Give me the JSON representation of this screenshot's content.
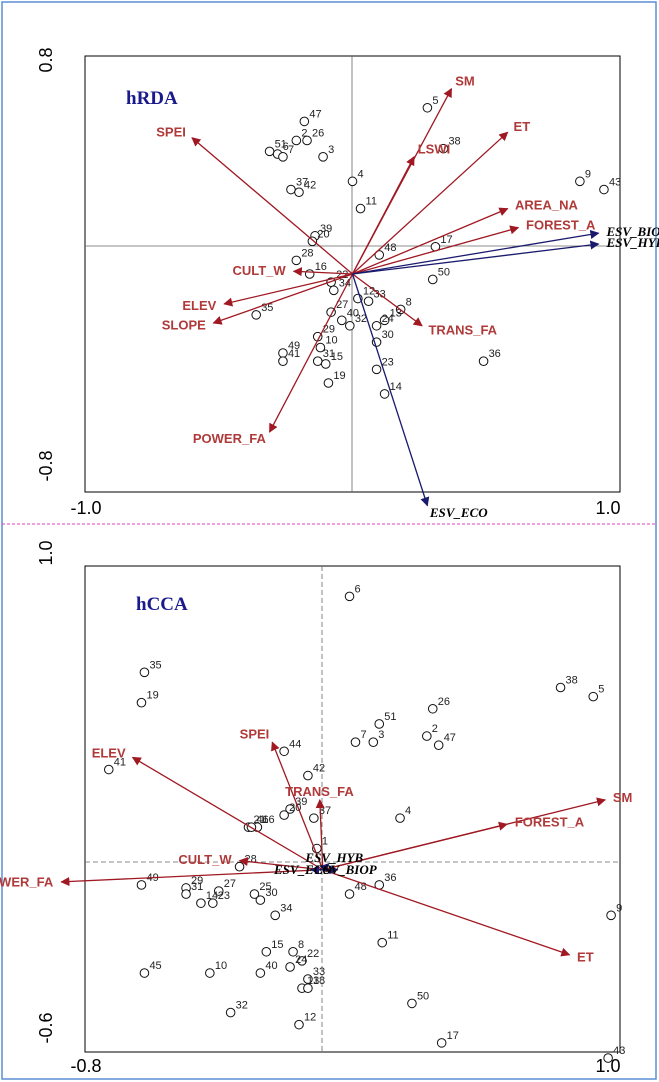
{
  "colors": {
    "env_arrow": "#a01822",
    "env_label": "#b03a3a",
    "esv_arrow": "#1a1a6e",
    "title": "#1a1a8c",
    "frame_border": "#5b8fd6",
    "divider": "#e040c0"
  },
  "chart_data": [
    {
      "type": "scatter",
      "title": "hRDA",
      "xlim": [
        -1.0,
        1.0
      ],
      "ylim": [
        -0.8,
        0.8
      ],
      "x_ticks": [
        "-1.0",
        "1.0"
      ],
      "y_ticks": [
        "0.8",
        "-0.8"
      ],
      "axis_lines": "dashed zero lines",
      "env_arrows": [
        {
          "label": "SM",
          "x": 0.37,
          "y": 0.68
        },
        {
          "label": "ET",
          "x": 0.58,
          "y": 0.52
        },
        {
          "label": "LSWI",
          "x": 0.23,
          "y": 0.43
        },
        {
          "label": "AREA_NA",
          "x": 0.58,
          "y": 0.24
        },
        {
          "label": "FOREST_A",
          "x": 0.62,
          "y": 0.17
        },
        {
          "label": "SPEI",
          "x": -0.6,
          "y": 0.5
        },
        {
          "label": "CULT_W",
          "x": -0.22,
          "y": 0.01
        },
        {
          "label": "ELEV",
          "x": -0.48,
          "y": -0.11
        },
        {
          "label": "SLOPE",
          "x": -0.52,
          "y": -0.18
        },
        {
          "label": "TRANS_FA",
          "x": 0.26,
          "y": -0.19
        },
        {
          "label": "POWER_FA",
          "x": -0.31,
          "y": -0.58
        }
      ],
      "esv_arrows": [
        {
          "label": "ESV_BIOP",
          "x": 0.92,
          "y": 0.15
        },
        {
          "label": "ESV_HYB",
          "x": 0.92,
          "y": 0.11
        },
        {
          "label": "ESV_ECO",
          "x": 0.28,
          "y": -0.85
        }
      ],
      "sites": [
        {
          "label": "5",
          "x": 0.28,
          "y": 0.61
        },
        {
          "label": "47",
          "x": -0.18,
          "y": 0.56
        },
        {
          "label": "2",
          "x": -0.21,
          "y": 0.49
        },
        {
          "label": "26",
          "x": -0.17,
          "y": 0.49
        },
        {
          "label": "51",
          "x": -0.31,
          "y": 0.45
        },
        {
          "label": "6",
          "x": -0.28,
          "y": 0.44
        },
        {
          "label": "7",
          "x": -0.26,
          "y": 0.43
        },
        {
          "label": "3",
          "x": -0.11,
          "y": 0.43
        },
        {
          "label": "38",
          "x": 0.34,
          "y": 0.46
        },
        {
          "label": "9",
          "x": 0.85,
          "y": 0.34
        },
        {
          "label": "43",
          "x": 0.94,
          "y": 0.31
        },
        {
          "label": "4",
          "x": 0.0,
          "y": 0.34
        },
        {
          "label": "37",
          "x": -0.23,
          "y": 0.31
        },
        {
          "label": "42",
          "x": -0.2,
          "y": 0.3
        },
        {
          "label": "11",
          "x": 0.03,
          "y": 0.24
        },
        {
          "label": "17",
          "x": 0.31,
          "y": 0.1
        },
        {
          "label": "48",
          "x": 0.1,
          "y": 0.07
        },
        {
          "label": "39",
          "x": -0.14,
          "y": 0.14
        },
        {
          "label": "20",
          "x": -0.15,
          "y": 0.12
        },
        {
          "label": "28",
          "x": -0.21,
          "y": 0.05
        },
        {
          "label": "16",
          "x": -0.16,
          "y": 0.0
        },
        {
          "label": "50",
          "x": 0.3,
          "y": -0.02
        },
        {
          "label": "22",
          "x": -0.08,
          "y": -0.03
        },
        {
          "label": "34",
          "x": -0.07,
          "y": -0.06
        },
        {
          "label": "12",
          "x": 0.02,
          "y": -0.09
        },
        {
          "label": "33",
          "x": 0.06,
          "y": -0.1
        },
        {
          "label": "8",
          "x": 0.18,
          "y": -0.13
        },
        {
          "label": "13",
          "x": 0.12,
          "y": -0.17
        },
        {
          "label": "27",
          "x": -0.08,
          "y": -0.14
        },
        {
          "label": "40",
          "x": -0.04,
          "y": -0.17
        },
        {
          "label": "24",
          "x": 0.09,
          "y": -0.19
        },
        {
          "label": "35",
          "x": -0.36,
          "y": -0.15
        },
        {
          "label": "32",
          "x": -0.01,
          "y": -0.19
        },
        {
          "label": "29",
          "x": -0.13,
          "y": -0.23
        },
        {
          "label": "30",
          "x": 0.09,
          "y": -0.25
        },
        {
          "label": "10",
          "x": -0.12,
          "y": -0.27
        },
        {
          "label": "49",
          "x": -0.26,
          "y": -0.29
        },
        {
          "label": "41",
          "x": -0.26,
          "y": -0.32
        },
        {
          "label": "31",
          "x": -0.13,
          "y": -0.32
        },
        {
          "label": "15",
          "x": -0.1,
          "y": -0.33
        },
        {
          "label": "23",
          "x": 0.09,
          "y": -0.35
        },
        {
          "label": "19",
          "x": -0.09,
          "y": -0.4
        },
        {
          "label": "14",
          "x": 0.12,
          "y": -0.44
        },
        {
          "label": "36",
          "x": 0.49,
          "y": -0.32
        }
      ]
    },
    {
      "type": "scatter",
      "title": "hCCA",
      "xlim": [
        -0.8,
        1.0
      ],
      "ylim": [
        -0.6,
        1.0
      ],
      "x_ticks": [
        "-0.8",
        "1.0"
      ],
      "y_ticks": [
        "1.0",
        "-0.6"
      ],
      "axis_lines": "dashed zero lines",
      "env_arrows": [
        {
          "label": "SM",
          "x": 0.95,
          "y": 0.23
        },
        {
          "label": "FOREST_A",
          "x": 0.62,
          "y": 0.15
        },
        {
          "label": "ET",
          "x": 0.83,
          "y": -0.28
        },
        {
          "label": "SPEI",
          "x": -0.17,
          "y": 0.42
        },
        {
          "label": "ELEV",
          "x": -0.64,
          "y": 0.37
        },
        {
          "label": "TRANS_FA",
          "x": -0.01,
          "y": 0.23
        },
        {
          "label": "CULT_W",
          "x": -0.28,
          "y": 0.03
        },
        {
          "label": "POWER_FA",
          "x": -0.88,
          "y": -0.04
        }
      ],
      "esv_arrows": [
        {
          "label": "ESV_HYB",
          "x": 0.02,
          "y": 0.02
        },
        {
          "label": "ESV_BIOP",
          "x": 0.05,
          "y": 0.0
        },
        {
          "label": "ESV_ECO",
          "x": -0.04,
          "y": 0.0
        }
      ],
      "sites": [
        {
          "label": "6",
          "x": 0.09,
          "y": 0.9
        },
        {
          "label": "35",
          "x": -0.6,
          "y": 0.65
        },
        {
          "label": "19",
          "x": -0.61,
          "y": 0.55
        },
        {
          "label": "38",
          "x": 0.8,
          "y": 0.6
        },
        {
          "label": "5",
          "x": 0.91,
          "y": 0.57
        },
        {
          "label": "26",
          "x": 0.37,
          "y": 0.53
        },
        {
          "label": "51",
          "x": 0.19,
          "y": 0.48
        },
        {
          "label": "7",
          "x": 0.11,
          "y": 0.42
        },
        {
          "label": "3",
          "x": 0.17,
          "y": 0.42
        },
        {
          "label": "2",
          "x": 0.35,
          "y": 0.44
        },
        {
          "label": "47",
          "x": 0.39,
          "y": 0.41
        },
        {
          "label": "44",
          "x": -0.13,
          "y": 0.39
        },
        {
          "label": "42",
          "x": -0.05,
          "y": 0.31
        },
        {
          "label": "41",
          "x": -0.72,
          "y": 0.33
        },
        {
          "label": "39",
          "x": -0.11,
          "y": 0.2
        },
        {
          "label": "20",
          "x": -0.13,
          "y": 0.18
        },
        {
          "label": "37",
          "x": -0.03,
          "y": 0.17
        },
        {
          "label": "4",
          "x": 0.26,
          "y": 0.17
        },
        {
          "label": "21",
          "x": -0.25,
          "y": 0.14
        },
        {
          "label": "16",
          "x": -0.22,
          "y": 0.14
        },
        {
          "label": "46",
          "x": -0.24,
          "y": 0.14
        },
        {
          "label": "1",
          "x": -0.02,
          "y": 0.07
        },
        {
          "label": "28",
          "x": -0.28,
          "y": 0.01
        },
        {
          "label": "36",
          "x": 0.19,
          "y": -0.05
        },
        {
          "label": "48",
          "x": 0.09,
          "y": -0.08
        },
        {
          "label": "49",
          "x": -0.61,
          "y": -0.05
        },
        {
          "label": "29",
          "x": -0.46,
          "y": -0.06
        },
        {
          "label": "31",
          "x": -0.46,
          "y": -0.08
        },
        {
          "label": "27",
          "x": -0.35,
          "y": -0.07
        },
        {
          "label": "25",
          "x": -0.23,
          "y": -0.08
        },
        {
          "label": "30",
          "x": -0.21,
          "y": -0.1
        },
        {
          "label": "14",
          "x": -0.41,
          "y": -0.11
        },
        {
          "label": "23",
          "x": -0.37,
          "y": -0.11
        },
        {
          "label": "34",
          "x": -0.16,
          "y": -0.15
        },
        {
          "label": "9",
          "x": 0.97,
          "y": -0.15
        },
        {
          "label": "11",
          "x": 0.2,
          "y": -0.24
        },
        {
          "label": "15",
          "x": -0.19,
          "y": -0.27
        },
        {
          "label": "8",
          "x": -0.1,
          "y": -0.27
        },
        {
          "label": "22",
          "x": -0.07,
          "y": -0.3
        },
        {
          "label": "24",
          "x": -0.11,
          "y": -0.32
        },
        {
          "label": "45",
          "x": -0.6,
          "y": -0.34
        },
        {
          "label": "10",
          "x": -0.38,
          "y": -0.34
        },
        {
          "label": "40",
          "x": -0.21,
          "y": -0.34
        },
        {
          "label": "33",
          "x": -0.05,
          "y": -0.36
        },
        {
          "label": "13",
          "x": -0.07,
          "y": -0.39
        },
        {
          "label": "18",
          "x": -0.05,
          "y": -0.39
        },
        {
          "label": "50",
          "x": 0.3,
          "y": -0.44
        },
        {
          "label": "32",
          "x": -0.31,
          "y": -0.47
        },
        {
          "label": "12",
          "x": -0.08,
          "y": -0.51
        },
        {
          "label": "17",
          "x": 0.4,
          "y": -0.57
        },
        {
          "label": "43",
          "x": 0.96,
          "y": -0.62
        }
      ]
    }
  ]
}
